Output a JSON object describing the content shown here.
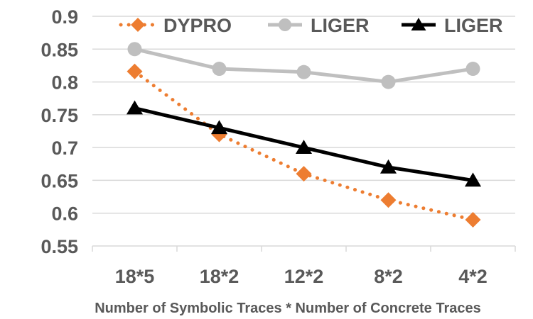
{
  "chart_data": {
    "type": "line",
    "title": "",
    "xlabel": "Number of Symbolic Traces * Number of Concrete Traces",
    "ylabel": "",
    "categories": [
      "18*5",
      "18*2",
      "12*2",
      "8*2",
      "4*2"
    ],
    "ylim": [
      0.55,
      0.9
    ],
    "yticks": [
      "0.55",
      "0.6",
      "0.65",
      "0.7",
      "0.75",
      "0.8",
      "0.85",
      "0.9"
    ],
    "grid": true,
    "legend_position": "top",
    "series": [
      {
        "name": "DYPRO",
        "values": [
          0.816,
          0.72,
          0.66,
          0.62,
          0.59
        ],
        "color": "#ED7D31",
        "marker": "diamond",
        "line_style": "dotted"
      },
      {
        "name": "LIGER",
        "values": [
          0.85,
          0.82,
          0.815,
          0.8,
          0.82
        ],
        "color": "#BFBFBF",
        "marker": "circle",
        "line_style": "solid"
      },
      {
        "name": "LIGER",
        "values": [
          0.76,
          0.73,
          0.7,
          0.67,
          0.65
        ],
        "color": "#000000",
        "marker": "triangle",
        "line_style": "solid"
      }
    ]
  }
}
